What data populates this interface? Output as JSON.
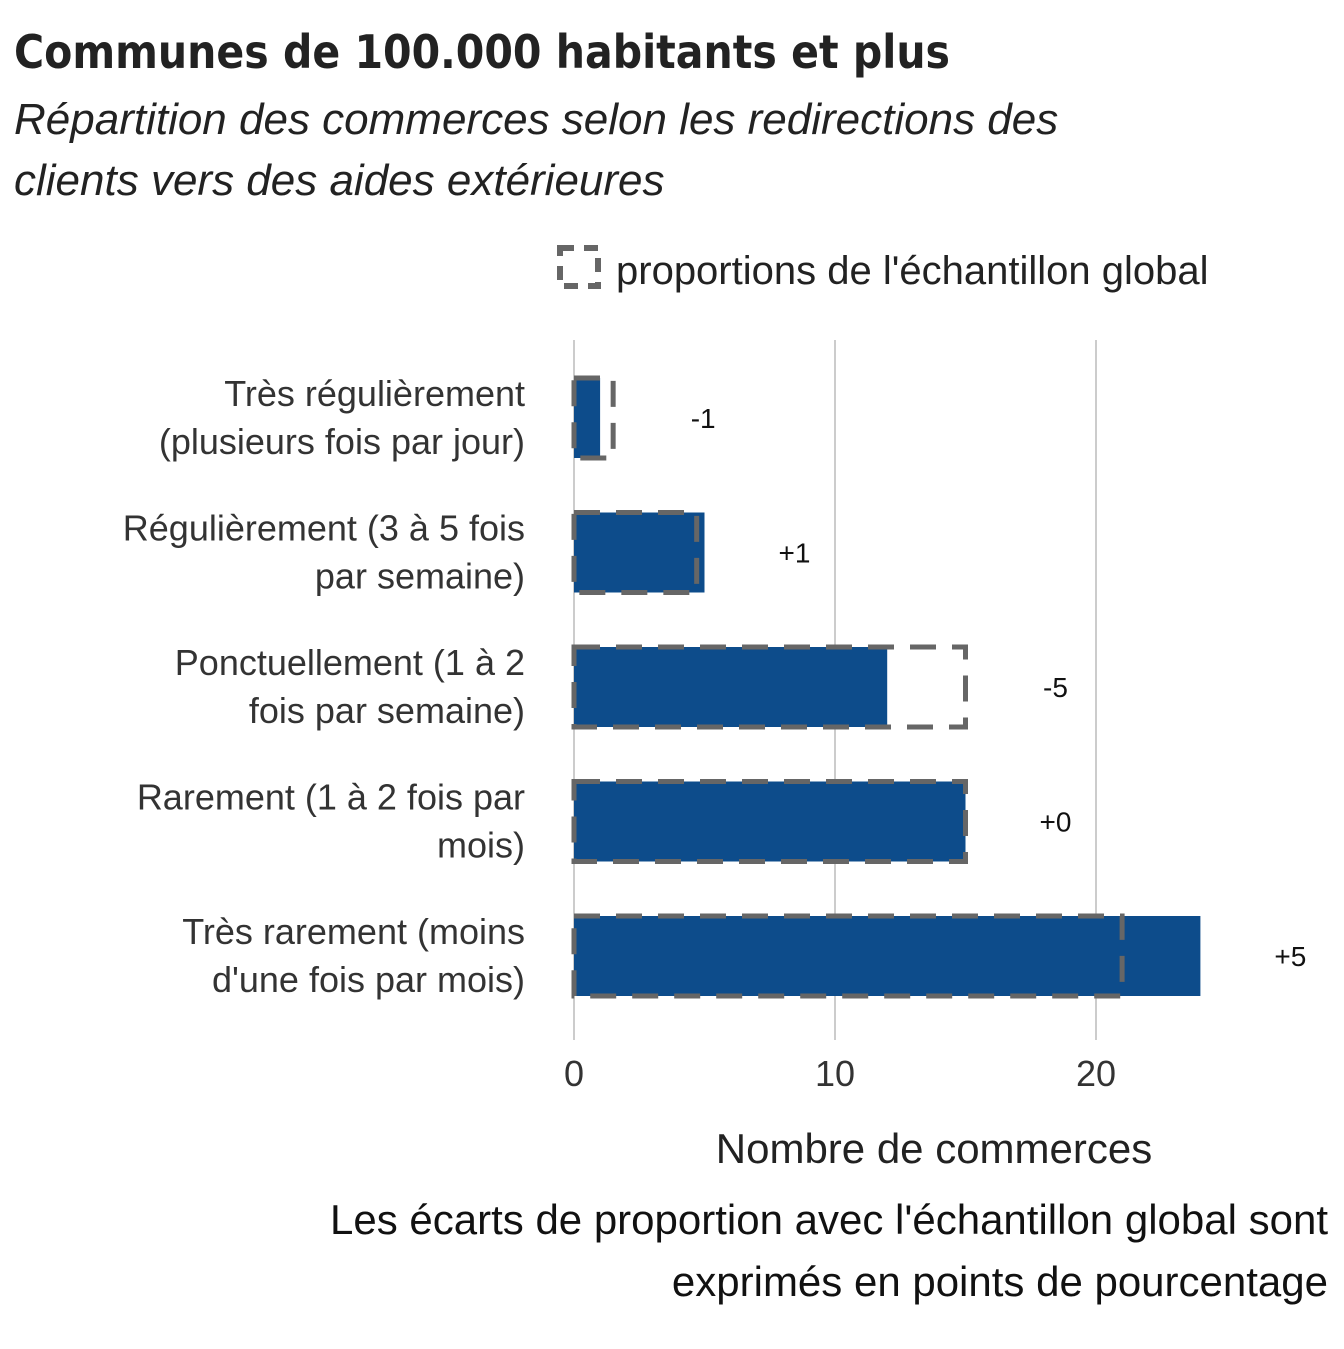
{
  "title": "Communes de 100.000 habitants et plus",
  "subtitle": [
    "Répartition des commerces selon les redirections des",
    "clients vers des aides extérieures"
  ],
  "legend_label": "proportions de l'échantillon global",
  "caption": [
    "Les écarts de proportion avec l'échantillon global sont",
    "exprimés en points de pourcentage"
  ],
  "colors": {
    "bar": "#0d4c8b",
    "reference_outline": "#666666",
    "grid": "#cccccc"
  },
  "chart_data": {
    "type": "bar",
    "orientation": "horizontal",
    "categories": [
      [
        "Très régulièrement",
        "(plusieurs fois par jour)"
      ],
      [
        "Régulièrement (3 à 5 fois",
        "par semaine)"
      ],
      [
        "Ponctuellement (1 à 2",
        "fois par semaine)"
      ],
      [
        "Rarement (1 à 2 fois par",
        "mois)"
      ],
      [
        "Très rarement (moins",
        "d'une fois par mois)"
      ]
    ],
    "series": [
      {
        "values": [
          1,
          5,
          12,
          15,
          24
        ]
      },
      {
        "name": "proportions de l'échantillon global",
        "values": [
          1.5,
          4.7,
          15,
          15,
          21
        ],
        "style": "dashed-outline"
      }
    ],
    "difference_labels": [
      "-1",
      "+1",
      "-5",
      "+0",
      "+5"
    ],
    "xlabel": "Nombre de commerces",
    "xlim": [
      0,
      28
    ],
    "xticks": [
      0,
      10,
      20
    ],
    "xtick_labels": [
      "0",
      "10",
      "20"
    ],
    "grid": "vertical",
    "legend_position": "top-right"
  }
}
